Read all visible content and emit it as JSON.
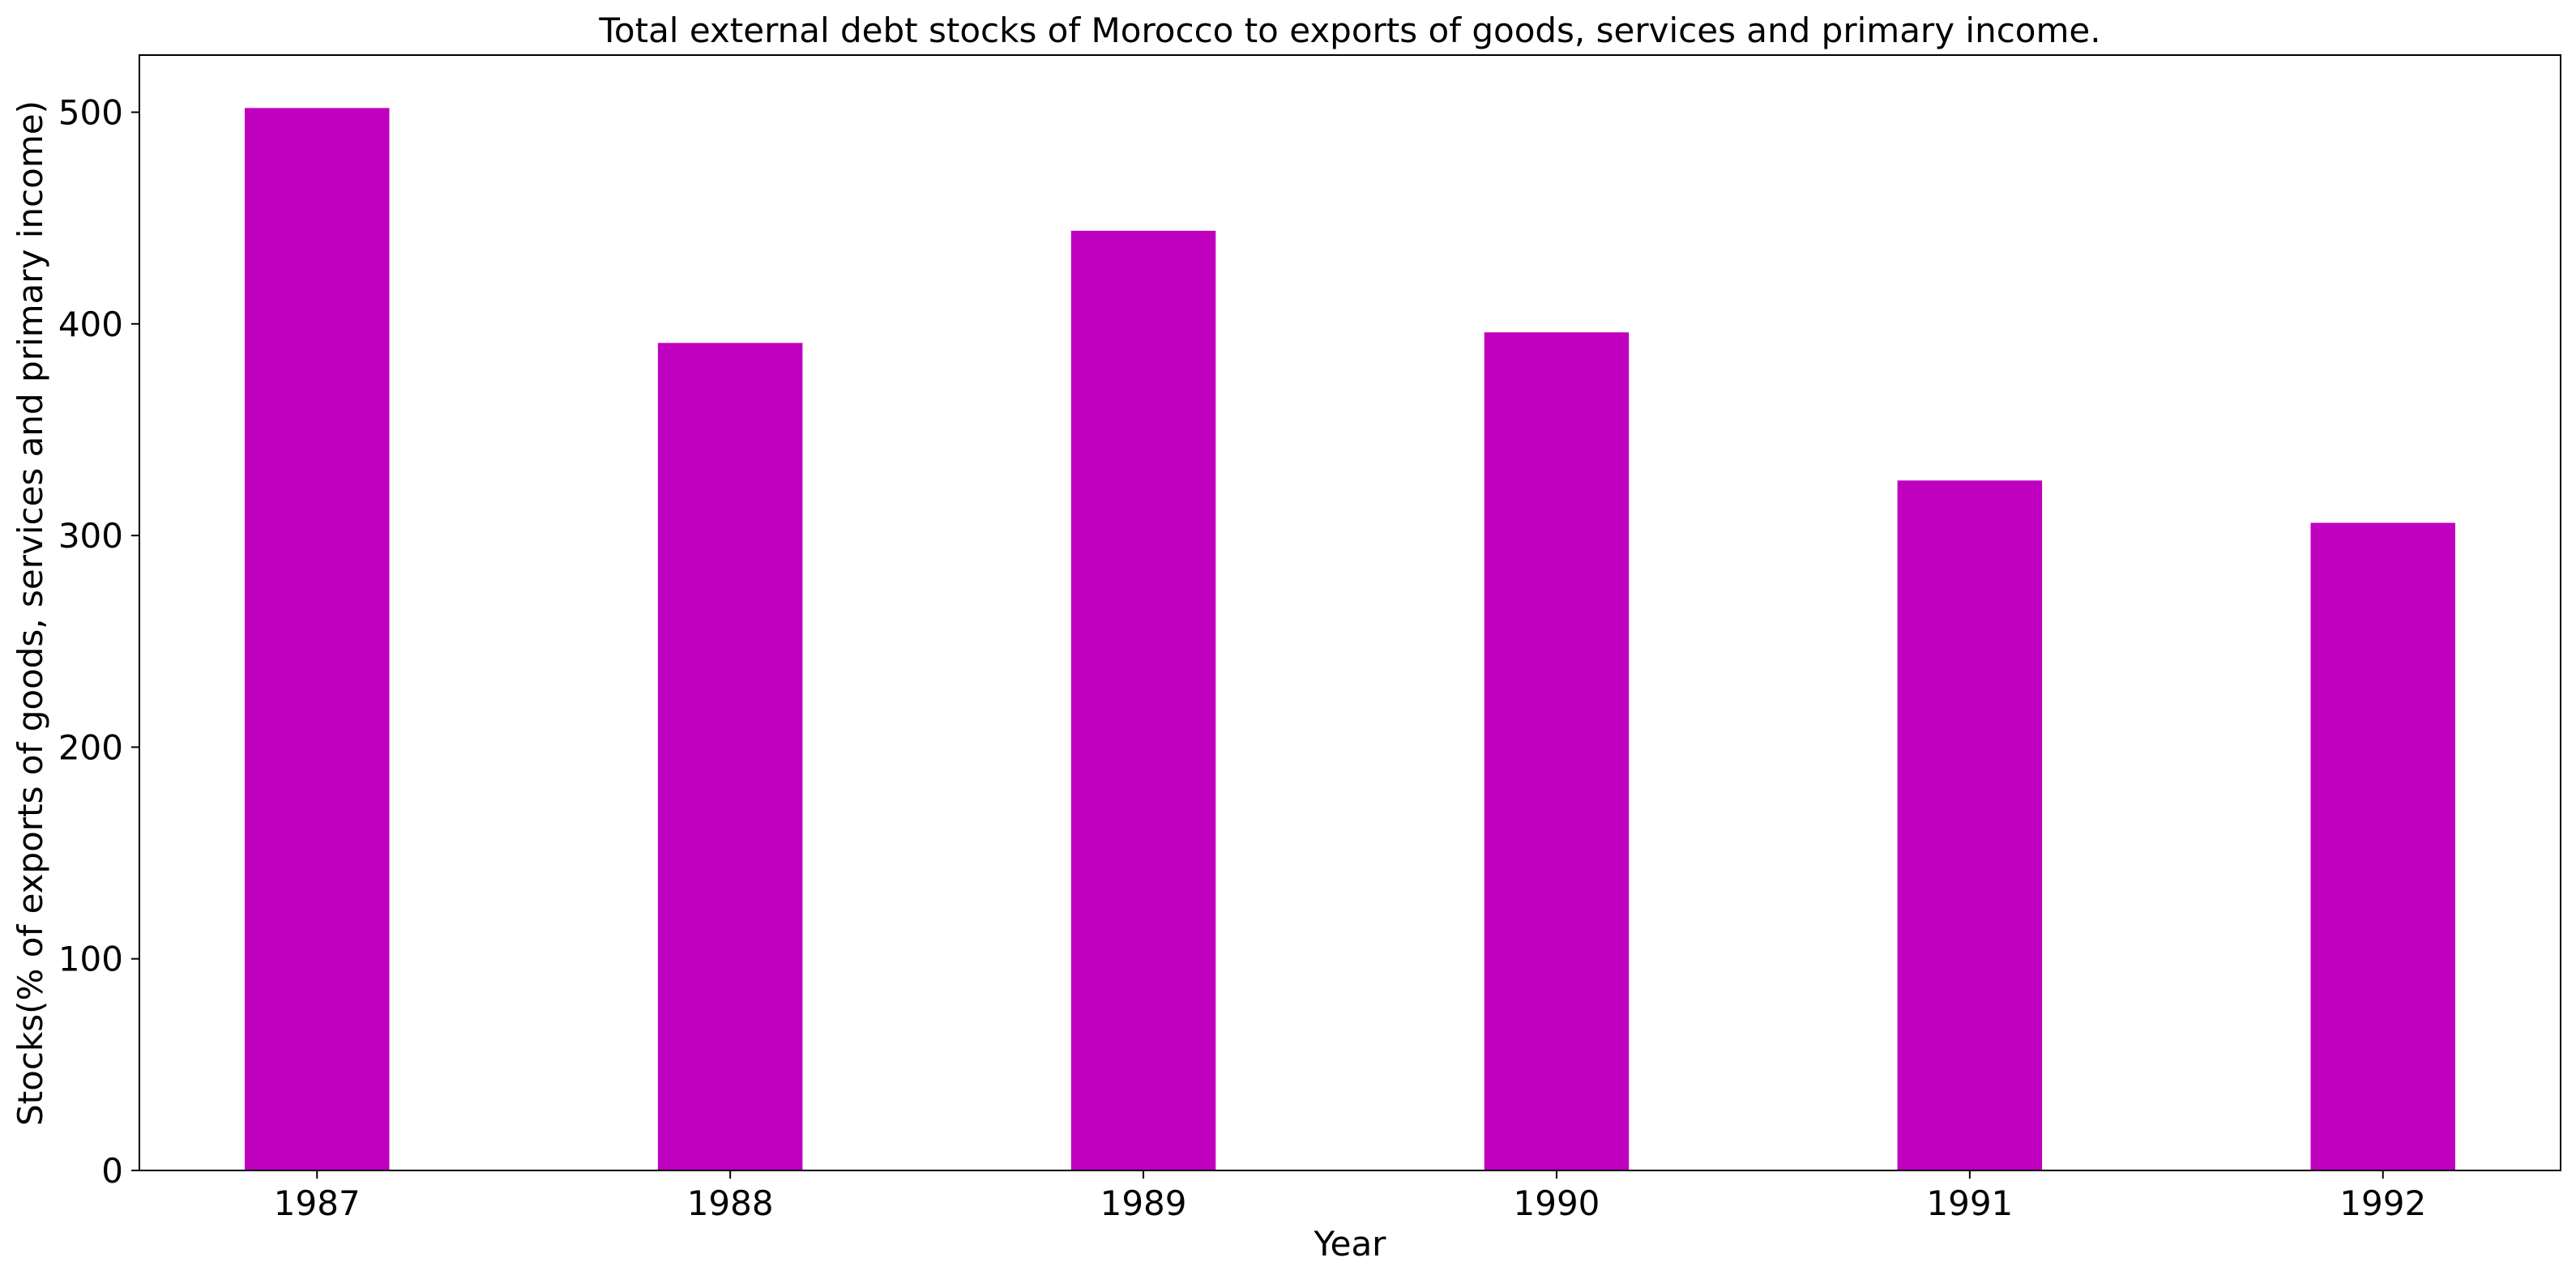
{
  "chart_data": {
    "type": "bar",
    "title": "Total external debt stocks of Morocco to exports of goods, services and primary income.",
    "xlabel": "Year",
    "ylabel": "Stocks(% of exports of goods, services and primary income)",
    "categories": [
      "1987",
      "1988",
      "1989",
      "1990",
      "1991",
      "1992"
    ],
    "values": [
      502,
      391,
      444,
      396,
      326,
      306
    ],
    "ylim": [
      0,
      527
    ],
    "yticks": [
      0,
      100,
      200,
      300,
      400,
      500
    ],
    "bar_color": "#bf00bf",
    "grid": false,
    "legend": "none"
  }
}
